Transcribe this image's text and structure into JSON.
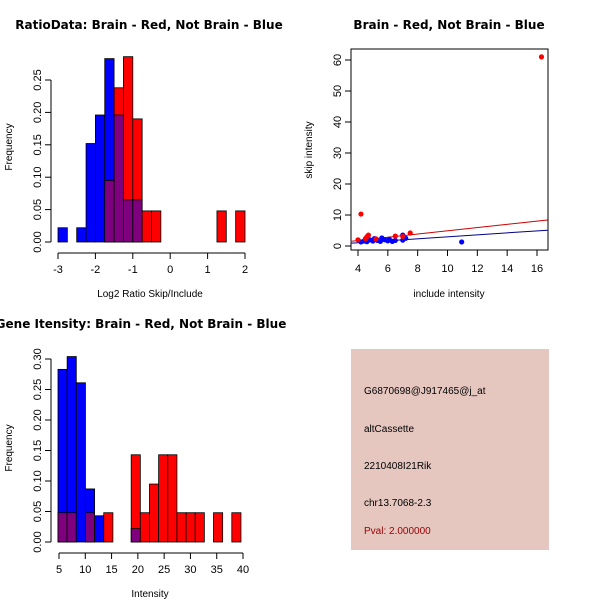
{
  "chart_data": [
    {
      "type": "bar",
      "title": "RatioData: Brain - Red, Not Brain - Blue",
      "xlabel": "Log2 Ratio Skip/Include",
      "ylabel": "Frequency",
      "xlim": [
        -3,
        2
      ],
      "ylim": [
        0,
        0.29
      ],
      "xticks": [
        "-3",
        "-2",
        "-1",
        "0",
        "1",
        "2"
      ],
      "xtick_values": [
        -3,
        -2,
        -1,
        0,
        1,
        2
      ],
      "yticks": [
        "0.00",
        "0.05",
        "0.10",
        "0.15",
        "0.20",
        "0.25"
      ],
      "ytick_values": [
        0,
        0.05,
        0.1,
        0.15,
        0.2,
        0.25
      ],
      "bin_width": 0.25,
      "series": [
        {
          "name": "Not Brain",
          "color": "#0000ff",
          "bins": [
            [
              -3.0,
              0.022
            ],
            [
              -2.5,
              0.022
            ],
            [
              -2.25,
              0.152
            ],
            [
              -2.0,
              0.196
            ],
            [
              -1.75,
              0.283
            ],
            [
              -1.5,
              0.196
            ],
            [
              -1.25,
              0.065
            ],
            [
              -1.0,
              0.065
            ]
          ]
        },
        {
          "name": "Brain",
          "color": "#ff0000",
          "bins": [
            [
              -1.75,
              0.095
            ],
            [
              -1.5,
              0.238
            ],
            [
              -1.25,
              0.286
            ],
            [
              -1.0,
              0.19
            ],
            [
              -0.75,
              0.048
            ],
            [
              -0.5,
              0.048
            ],
            [
              1.25,
              0.048
            ],
            [
              1.75,
              0.048
            ]
          ]
        }
      ],
      "overlap_color": "#7f007f"
    },
    {
      "type": "scatter",
      "title": "Brain - Red, Not Brain - Blue",
      "xlabel": "include intensity",
      "ylabel": "skip intensity",
      "xlim": [
        3.5,
        16.7
      ],
      "ylim": [
        -1,
        64
      ],
      "xticks": [
        "4",
        "6",
        "8",
        "10",
        "12",
        "14",
        "16"
      ],
      "xtick_values": [
        4,
        6,
        8,
        10,
        12,
        14,
        16
      ],
      "yticks": [
        "0",
        "10",
        "20",
        "30",
        "40",
        "50",
        "60"
      ],
      "ytick_values": [
        0,
        10,
        20,
        30,
        40,
        50,
        60
      ],
      "series": [
        {
          "name": "Brain",
          "color": "#ff0000",
          "line_color": "#cc0000",
          "points": [
            [
              4.0,
              2.0
            ],
            [
              4.2,
              10.3
            ],
            [
              4.5,
              2.4
            ],
            [
              4.6,
              3.0
            ],
            [
              4.7,
              3.5
            ],
            [
              5.2,
              2.3
            ],
            [
              6.5,
              3.2
            ],
            [
              7.0,
              3.1
            ],
            [
              7.5,
              4.2
            ],
            [
              16.3,
              61.0
            ]
          ],
          "fit": [
            [
              3.5,
              1.5
            ],
            [
              16.7,
              8.4
            ]
          ]
        },
        {
          "name": "Not Brain",
          "color": "#0000ff",
          "line_color": "#00008b",
          "points": [
            [
              4.2,
              1.3
            ],
            [
              4.4,
              1.6
            ],
            [
              4.6,
              1.4
            ],
            [
              4.8,
              2.0
            ],
            [
              5.0,
              1.6
            ],
            [
              5.1,
              2.4
            ],
            [
              5.3,
              1.8
            ],
            [
              5.5,
              1.5
            ],
            [
              5.6,
              2.6
            ],
            [
              5.8,
              2.0
            ],
            [
              6.0,
              1.7
            ],
            [
              6.1,
              2.2
            ],
            [
              6.3,
              1.5
            ],
            [
              6.5,
              1.8
            ],
            [
              7.0,
              3.5
            ],
            [
              7.0,
              1.9
            ],
            [
              7.2,
              2.5
            ],
            [
              10.95,
              1.3
            ]
          ],
          "fit": [
            [
              3.5,
              0.9
            ],
            [
              16.7,
              5.1
            ]
          ]
        }
      ]
    },
    {
      "type": "bar",
      "title": "Gene Itensity: Brain - Red, Not Brain - Blue",
      "xlabel": "Intensity",
      "ylabel": "Frequency",
      "xlim": [
        5,
        40
      ],
      "ylim": [
        0,
        0.31
      ],
      "xticks": [
        "5",
        "10",
        "15",
        "20",
        "25",
        "30",
        "35",
        "40"
      ],
      "xtick_values": [
        5,
        10,
        15,
        20,
        25,
        30,
        35,
        40
      ],
      "yticks": [
        "0.00",
        "0.05",
        "0.10",
        "0.15",
        "0.20",
        "0.25",
        "0.30"
      ],
      "ytick_values": [
        0,
        0.05,
        0.1,
        0.15,
        0.2,
        0.25,
        0.3
      ],
      "bin_start": 5,
      "bin_width": 1.74,
      "series": [
        {
          "name": "Not Brain",
          "color": "#0000ff",
          "bins": [
            [
              0,
              0.283
            ],
            [
              1,
              0.304
            ],
            [
              2,
              0.261
            ],
            [
              3,
              0.087
            ],
            [
              4,
              0.043
            ],
            [
              8,
              0.022
            ]
          ]
        },
        {
          "name": "Brain",
          "color": "#ff0000",
          "bins": [
            [
              0,
              0.048
            ],
            [
              1,
              0.048
            ],
            [
              3,
              0.048
            ],
            [
              5,
              0.048
            ],
            [
              8,
              0.143
            ],
            [
              9,
              0.048
            ],
            [
              10,
              0.095
            ],
            [
              11,
              0.143
            ],
            [
              12,
              0.143
            ],
            [
              13,
              0.048
            ],
            [
              14,
              0.048
            ],
            [
              15,
              0.048
            ],
            [
              17,
              0.048
            ],
            [
              19,
              0.048
            ]
          ]
        }
      ],
      "overlap_color": "#7f007f"
    }
  ],
  "info_panel": {
    "probe_id": "G6870698@J917465@j_at",
    "event_type": "altCassette",
    "gene": "2210408I21Rik",
    "location": "chr13.7068-2.3",
    "pval": "Pval: 2.000000",
    "pval_color": "#990000",
    "background": "#e5c7c0"
  }
}
